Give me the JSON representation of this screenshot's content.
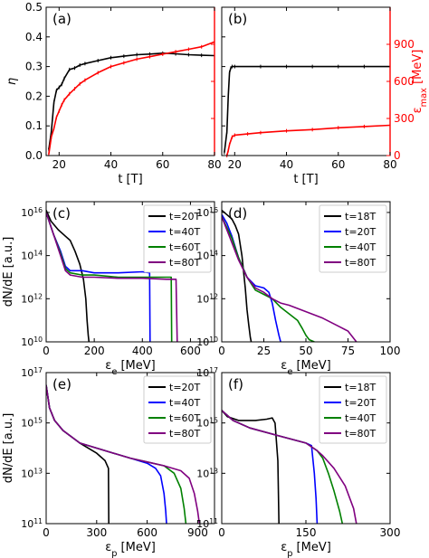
{
  "chart_data": [
    {
      "id": "a",
      "panel_label": "(a)",
      "type": "line",
      "xlabel": "t [T]",
      "ylabel": "η",
      "y2label": "ε_max [MeV]",
      "xlim": [
        15,
        80
      ],
      "ylim": [
        0.0,
        0.5
      ],
      "y2lim": [
        0,
        1200
      ],
      "x_ticks": [
        20,
        40,
        60,
        80
      ],
      "y_ticks": [
        0.0,
        0.1,
        0.2,
        0.3,
        0.4,
        0.5
      ],
      "y2_ticks": [
        300,
        600,
        900
      ],
      "color_y2": "#ff0000",
      "series": [
        {
          "axis": "left",
          "color": "#000000",
          "x": [
            16,
            17,
            18,
            19,
            20,
            21,
            22,
            24,
            26,
            28,
            30,
            35,
            40,
            45,
            50,
            55,
            60,
            65,
            70,
            75,
            80
          ],
          "values": [
            0.02,
            0.08,
            0.18,
            0.22,
            0.23,
            0.24,
            0.26,
            0.29,
            0.295,
            0.305,
            0.31,
            0.32,
            0.33,
            0.335,
            0.34,
            0.342,
            0.345,
            0.343,
            0.34,
            0.338,
            0.337
          ]
        },
        {
          "axis": "right",
          "color": "#ff0000",
          "x": [
            16,
            17,
            18,
            19,
            20,
            21,
            22,
            24,
            26,
            28,
            30,
            35,
            40,
            45,
            50,
            55,
            60,
            65,
            70,
            75,
            80
          ],
          "values": [
            10,
            150,
            220,
            310,
            360,
            410,
            450,
            500,
            540,
            580,
            610,
            670,
            720,
            750,
            780,
            800,
            820,
            840,
            860,
            880,
            920
          ]
        }
      ]
    },
    {
      "id": "b",
      "panel_label": "(b)",
      "type": "line",
      "xlabel": "t [T]",
      "ylabel": "",
      "y2label": "ε_max [MeV]",
      "xlim": [
        15,
        80
      ],
      "ylim": [
        0.0,
        0.5
      ],
      "y2lim": [
        0,
        1200
      ],
      "x_ticks": [
        20,
        40,
        60,
        80
      ],
      "y2_ticks": [
        0,
        300,
        600,
        900
      ],
      "color_y2": "#ff0000",
      "series": [
        {
          "axis": "left",
          "color": "#000000",
          "x": [
            16,
            17,
            17.5,
            18,
            18.5,
            19,
            20,
            30,
            40,
            50,
            60,
            70,
            80
          ],
          "values": [
            0.01,
            0.08,
            0.2,
            0.28,
            0.295,
            0.3,
            0.3,
            0.3,
            0.3,
            0.3,
            0.3,
            0.3,
            0.3
          ]
        },
        {
          "axis": "right",
          "color": "#ff0000",
          "x": [
            17,
            17.5,
            18,
            19,
            20,
            25,
            30,
            40,
            50,
            60,
            70,
            80
          ],
          "values": [
            0,
            40,
            90,
            150,
            165,
            175,
            185,
            200,
            210,
            225,
            235,
            245
          ]
        }
      ]
    },
    {
      "id": "c",
      "panel_label": "(c)",
      "type": "line",
      "xlabel": "ε_e [MeV]",
      "ylabel": "dN/dE [a.u.]",
      "xlim": [
        0,
        700
      ],
      "ylim_log10": [
        10,
        16.5
      ],
      "log_y": true,
      "x_ticks": [
        0,
        200,
        400,
        600
      ],
      "y_ticks_log10": [
        10,
        12,
        14,
        16
      ],
      "legend_position": "top-right",
      "series": [
        {
          "name": "t=20T",
          "color": "#000000",
          "x": [
            0,
            20,
            50,
            80,
            100,
            120,
            140,
            155,
            165,
            170,
            175,
            178
          ],
          "log10_values": [
            16.1,
            15.6,
            15.2,
            14.9,
            14.7,
            14.2,
            13.6,
            12.9,
            12.0,
            11.0,
            10.3,
            10.0
          ]
        },
        {
          "name": "t=40T",
          "color": "#0000ff",
          "x": [
            0,
            30,
            60,
            80,
            100,
            150,
            200,
            300,
            400,
            430,
            432
          ],
          "log10_values": [
            16.0,
            15.0,
            14.2,
            13.5,
            13.3,
            13.3,
            13.2,
            13.2,
            13.25,
            13.2,
            10.0
          ]
        },
        {
          "name": "t=60T",
          "color": "#008000",
          "x": [
            0,
            30,
            60,
            80,
            100,
            150,
            200,
            300,
            400,
            500,
            520,
            522
          ],
          "log10_values": [
            16.0,
            15.0,
            14.1,
            13.4,
            13.2,
            13.1,
            13.1,
            13.0,
            13.0,
            13.0,
            13.0,
            10.0
          ]
        },
        {
          "name": "t=80T",
          "color": "#800080",
          "x": [
            0,
            30,
            60,
            80,
            100,
            150,
            200,
            300,
            400,
            500,
            540,
            545
          ],
          "log10_values": [
            16.0,
            15.0,
            14.0,
            13.3,
            13.1,
            13.0,
            13.0,
            12.95,
            12.95,
            12.9,
            12.9,
            10.0
          ]
        }
      ]
    },
    {
      "id": "d",
      "panel_label": "(d)",
      "type": "line",
      "xlabel": "ε_e [MeV]",
      "ylabel": "",
      "xlim": [
        0,
        100
      ],
      "ylim_log10": [
        10,
        16.5
      ],
      "log_y": true,
      "x_ticks": [
        0,
        25,
        50,
        75,
        100
      ],
      "y_ticks_log10": [
        10,
        12,
        14,
        16
      ],
      "legend_position": "top-right",
      "series": [
        {
          "name": "t=18T",
          "color": "#000000",
          "x": [
            0,
            3,
            6,
            8,
            10,
            12,
            14,
            15,
            16,
            17,
            17.5
          ],
          "log10_values": [
            16.1,
            15.9,
            15.7,
            15.4,
            15.0,
            14.0,
            12.5,
            11.5,
            10.8,
            10.2,
            10.0
          ]
        },
        {
          "name": "t=20T",
          "color": "#0000ff",
          "x": [
            0,
            3,
            6,
            10,
            15,
            20,
            25,
            28,
            30,
            32,
            34,
            35
          ],
          "log10_values": [
            15.9,
            15.5,
            14.9,
            13.9,
            13.0,
            12.6,
            12.5,
            12.3,
            11.8,
            11.0,
            10.3,
            10.0
          ]
        },
        {
          "name": "t=40T",
          "color": "#008000",
          "x": [
            0,
            3,
            6,
            10,
            15,
            20,
            25,
            30,
            35,
            40,
            45,
            48,
            50,
            52,
            55
          ],
          "log10_values": [
            15.8,
            15.3,
            14.8,
            13.9,
            13.0,
            12.4,
            12.2,
            12.0,
            11.6,
            11.3,
            11.0,
            10.6,
            10.3,
            10.1,
            10.0
          ]
        },
        {
          "name": "t=80T",
          "color": "#800080",
          "x": [
            0,
            3,
            6,
            10,
            15,
            20,
            25,
            30,
            35,
            40,
            50,
            60,
            70,
            75,
            78,
            80
          ],
          "log10_values": [
            15.8,
            15.2,
            14.6,
            13.8,
            13.0,
            12.5,
            12.3,
            12.0,
            11.8,
            11.7,
            11.4,
            11.1,
            10.7,
            10.5,
            10.2,
            10.0
          ]
        }
      ]
    },
    {
      "id": "e",
      "panel_label": "(e)",
      "type": "line",
      "xlabel": "ε_p [MeV]",
      "ylabel": "dN/dE [a.u.]",
      "xlim": [
        0,
        1000
      ],
      "ylim_log10": [
        11,
        17
      ],
      "log_y": true,
      "x_ticks": [
        0,
        300,
        600,
        900
      ],
      "y_ticks_log10": [
        11,
        13,
        15,
        17
      ],
      "legend_position": "top-right",
      "series": [
        {
          "name": "t=20T",
          "color": "#000000",
          "x": [
            0,
            20,
            50,
            100,
            200,
            300,
            350,
            370,
            372
          ],
          "log10_values": [
            16.5,
            15.6,
            15.1,
            14.7,
            14.2,
            13.8,
            13.5,
            13.2,
            11.0
          ]
        },
        {
          "name": "t=40T",
          "color": "#0000ff",
          "x": [
            0,
            20,
            50,
            100,
            200,
            300,
            400,
            500,
            600,
            650,
            680,
            700,
            710,
            715
          ],
          "log10_values": [
            16.5,
            15.6,
            15.1,
            14.7,
            14.2,
            14.0,
            13.8,
            13.6,
            13.4,
            13.2,
            12.9,
            12.2,
            11.5,
            11.0
          ]
        },
        {
          "name": "t=60T",
          "color": "#008000",
          "x": [
            0,
            20,
            50,
            100,
            200,
            300,
            400,
            500,
            600,
            700,
            760,
            800,
            820,
            830
          ],
          "log10_values": [
            16.5,
            15.6,
            15.1,
            14.7,
            14.2,
            14.0,
            13.8,
            13.6,
            13.45,
            13.3,
            13.0,
            12.4,
            11.6,
            11.0
          ]
        },
        {
          "name": "t=80T",
          "color": "#800080",
          "x": [
            0,
            20,
            50,
            100,
            200,
            300,
            400,
            500,
            600,
            700,
            800,
            850,
            880,
            900,
            910
          ],
          "log10_values": [
            16.5,
            15.6,
            15.1,
            14.7,
            14.2,
            14.0,
            13.8,
            13.6,
            13.45,
            13.3,
            13.1,
            12.8,
            12.2,
            11.5,
            11.0
          ]
        }
      ]
    },
    {
      "id": "f",
      "panel_label": "(f)",
      "type": "line",
      "xlabel": "ε_p [MeV]",
      "ylabel": "",
      "xlim": [
        0,
        300
      ],
      "ylim_log10": [
        11,
        17
      ],
      "log_y": true,
      "x_ticks": [
        0,
        150,
        300
      ],
      "y_ticks_log10": [
        11,
        13,
        15,
        17
      ],
      "legend_position": "top-right",
      "series": [
        {
          "name": "t=18T",
          "color": "#000000",
          "x": [
            0,
            10,
            30,
            60,
            80,
            90,
            95,
            100,
            102
          ],
          "log10_values": [
            15.5,
            15.25,
            15.1,
            15.1,
            15.15,
            15.2,
            15.0,
            13.5,
            11.0
          ]
        },
        {
          "name": "t=20T",
          "color": "#0000ff",
          "x": [
            0,
            20,
            50,
            100,
            150,
            160,
            165,
            168,
            170
          ],
          "log10_values": [
            15.5,
            15.1,
            14.8,
            14.5,
            14.2,
            14.1,
            13.0,
            12.0,
            11.0
          ]
        },
        {
          "name": "t=40T",
          "color": "#008000",
          "x": [
            0,
            20,
            50,
            100,
            150,
            170,
            180,
            190,
            200,
            210,
            215
          ],
          "log10_values": [
            15.5,
            15.1,
            14.8,
            14.5,
            14.2,
            13.9,
            13.6,
            13.0,
            12.3,
            11.5,
            11.0
          ]
        },
        {
          "name": "t=80T",
          "color": "#800080",
          "x": [
            0,
            20,
            50,
            100,
            150,
            170,
            180,
            200,
            220,
            235,
            240
          ],
          "log10_values": [
            15.5,
            15.1,
            14.8,
            14.5,
            14.2,
            13.9,
            13.7,
            13.2,
            12.5,
            11.6,
            11.0
          ]
        }
      ]
    }
  ]
}
